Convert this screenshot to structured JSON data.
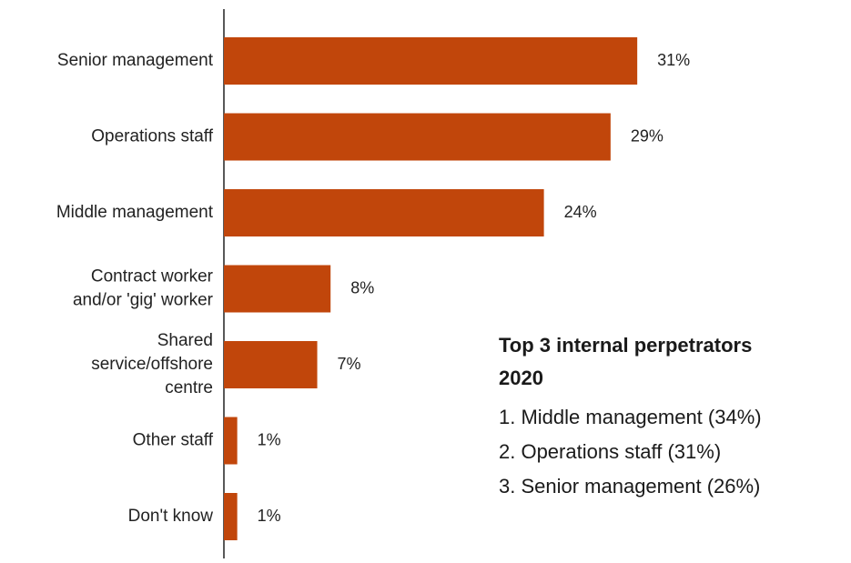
{
  "chart_data": {
    "type": "bar",
    "orientation": "horizontal",
    "categories": [
      [
        "Senior management"
      ],
      [
        "Operations staff"
      ],
      [
        "Middle management"
      ],
      [
        "Contract worker",
        "and/or 'gig' worker"
      ],
      [
        "Shared",
        "service/offshore",
        "centre"
      ],
      [
        "Other staff"
      ],
      [
        "Don't know"
      ]
    ],
    "values": [
      31,
      29,
      24,
      8,
      7,
      1,
      1
    ],
    "data_labels": [
      "31%",
      "29%",
      "24%",
      "8%",
      "7%",
      "1%",
      "1%"
    ],
    "unit": "%",
    "bar_color": "#c1460b",
    "grid": false,
    "legend": "none"
  },
  "callout": {
    "title_line1": "Top 3 internal perpetrators",
    "title_line2": "2020",
    "items": [
      "1. Middle management (34%)",
      "2. Operations staff (31%)",
      "3. Senior management (26%)"
    ]
  }
}
